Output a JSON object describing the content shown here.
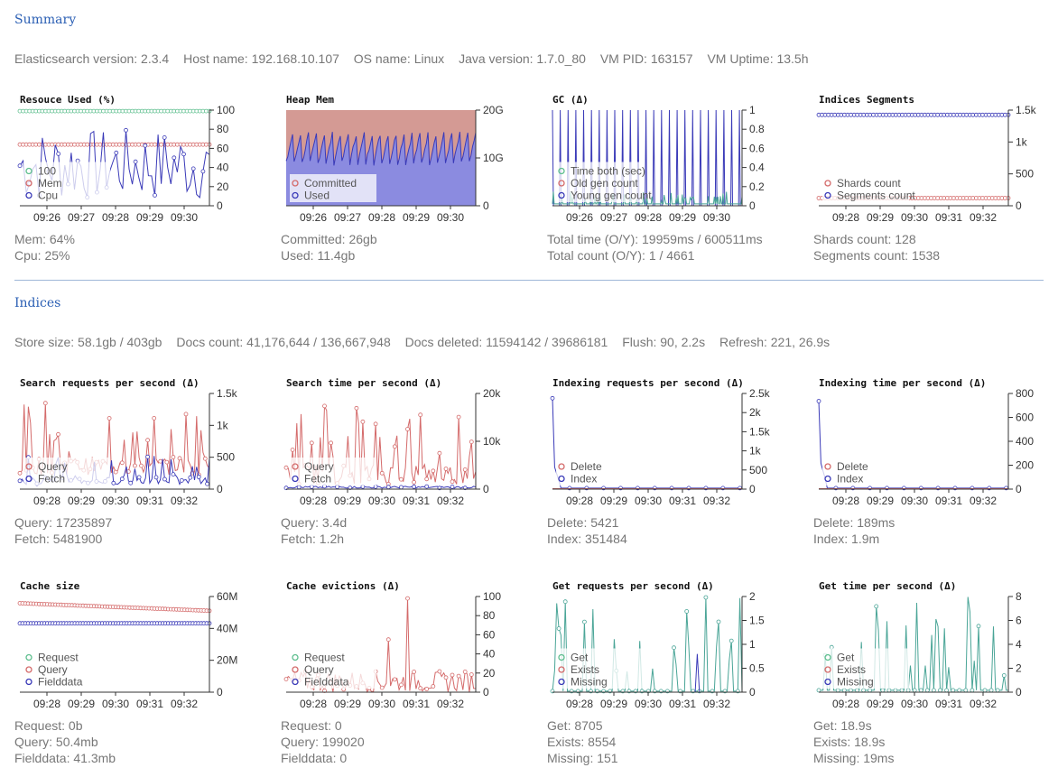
{
  "summary": {
    "title": "Summary",
    "info": [
      "Elasticsearch version: 2.3.4",
      "Host name: 192.168.10.107",
      "OS name: Linux",
      "Java version: 1.7.0_80",
      "VM PID: 163157",
      "VM Uptime: 13.5h"
    ]
  },
  "indices": {
    "title": "Indices",
    "info": [
      "Store size: 58.1gb / 403gb",
      "Docs count: 41,176,644 / 136,667,948",
      "Docs deleted: 11594142 / 39686181",
      "Flush: 90, 2.2s",
      "Refresh: 221, 26.9s"
    ]
  },
  "colors": {
    "green": "#5fbf8f",
    "red": "#d46a6a",
    "blue": "#3a3ab8",
    "teal": "#4aa597",
    "heap_bg": "#d49a94",
    "heap_used": "#8b8be0"
  },
  "charts": [
    {
      "title": "Resouce Used (%)",
      "yticks": [
        "100",
        "80",
        "60",
        "40",
        "20",
        "0"
      ],
      "xticks": [
        "09:26",
        "09:27",
        "09:28",
        "09:29",
        "09:30"
      ],
      "legend": [
        "100",
        "Mem",
        "Cpu"
      ],
      "stats": [
        "Mem: 64%",
        "Cpu: 25%"
      ]
    },
    {
      "title": "Heap Mem",
      "yticks": [
        "20G",
        "10G",
        "0"
      ],
      "xticks": [
        "09:26",
        "09:27",
        "09:28",
        "09:29",
        "09:30"
      ],
      "legend": [
        "Committed",
        "Used"
      ],
      "stats": [
        "Committed: 26gb",
        "Used: 11.4gb"
      ]
    },
    {
      "title": "GC (Δ)",
      "yticks": [
        "1",
        "0.8",
        "0.6",
        "0.4",
        "0.2",
        "0"
      ],
      "xticks": [
        "09:26",
        "09:27",
        "09:28",
        "09:29",
        "09:30"
      ],
      "legend": [
        "Time both (sec)",
        "Old gen count",
        "Young gen count"
      ],
      "stats": [
        "Total time (O/Y): 19959ms / 600511ms",
        "Total count (O/Y): 1 / 4661"
      ]
    },
    {
      "title": "Indices Segments",
      "yticks": [
        "1.5k",
        "1k",
        "500",
        "0"
      ],
      "xticks": [
        "09:28",
        "09:29",
        "09:30",
        "09:31",
        "09:32"
      ],
      "legend": [
        "Shards count",
        "Segments count"
      ],
      "stats": [
        "Shards count: 128",
        "Segments count: 1538"
      ]
    },
    {
      "title": "Search requests per second (Δ)",
      "yticks": [
        "1.5k",
        "1k",
        "500",
        "0"
      ],
      "xticks": [
        "09:28",
        "09:29",
        "09:30",
        "09:31",
        "09:32"
      ],
      "legend": [
        "Query",
        "Fetch"
      ],
      "stats": [
        "Query: 17235897",
        "Fetch: 5481900"
      ]
    },
    {
      "title": "Search time per second (Δ)",
      "yticks": [
        "20k",
        "10k",
        "0"
      ],
      "xticks": [
        "09:28",
        "09:29",
        "09:30",
        "09:31",
        "09:32"
      ],
      "legend": [
        "Query",
        "Fetch"
      ],
      "stats": [
        "Query: 3.4d",
        "Fetch: 1.2h"
      ]
    },
    {
      "title": "Indexing requests per second (Δ)",
      "yticks": [
        "2.5k",
        "2k",
        "1.5k",
        "1k",
        "500",
        "0"
      ],
      "xticks": [
        "09:28",
        "09:29",
        "09:30",
        "09:31",
        "09:32"
      ],
      "legend": [
        "Delete",
        "Index"
      ],
      "stats": [
        "Delete: 5421",
        "Index: 351484"
      ]
    },
    {
      "title": "Indexing time per second (Δ)",
      "yticks": [
        "800",
        "600",
        "400",
        "200",
        "0"
      ],
      "xticks": [
        "09:28",
        "09:29",
        "09:30",
        "09:31",
        "09:32"
      ],
      "legend": [
        "Delete",
        "Index"
      ],
      "stats": [
        "Delete: 189ms",
        "Index: 1.9m"
      ]
    },
    {
      "title": "Cache size",
      "yticks": [
        "60M",
        "40M",
        "20M",
        "0"
      ],
      "xticks": [
        "09:28",
        "09:29",
        "09:30",
        "09:31",
        "09:32"
      ],
      "legend": [
        "Request",
        "Query",
        "Fielddata"
      ],
      "stats": [
        "Request: 0b",
        "Query: 50.4mb",
        "Fielddata: 41.3mb"
      ]
    },
    {
      "title": "Cache evictions (Δ)",
      "yticks": [
        "100",
        "80",
        "60",
        "40",
        "20",
        "0"
      ],
      "xticks": [
        "09:28",
        "09:29",
        "09:30",
        "09:31",
        "09:32"
      ],
      "legend": [
        "Request",
        "Query",
        "Fielddata"
      ],
      "stats": [
        "Request: 0",
        "Query: 199020",
        "Fielddata: 0"
      ]
    },
    {
      "title": "Get requests per second (Δ)",
      "yticks": [
        "2",
        "1.5",
        "1",
        "0.5",
        "0"
      ],
      "xticks": [
        "09:28",
        "09:29",
        "09:30",
        "09:31",
        "09:32"
      ],
      "legend": [
        "Get",
        "Exists",
        "Missing"
      ],
      "stats": [
        "Get: 8705",
        "Exists: 8554",
        "Missing: 151"
      ]
    },
    {
      "title": "Get time per second (Δ)",
      "yticks": [
        "8",
        "6",
        "4",
        "2",
        "0"
      ],
      "xticks": [
        "09:28",
        "09:29",
        "09:30",
        "09:31",
        "09:32"
      ],
      "legend": [
        "Get",
        "Exists",
        "Missing"
      ],
      "stats": [
        "Get: 18.9s",
        "Exists: 18.9s",
        "Missing: 19ms"
      ]
    }
  ]
}
